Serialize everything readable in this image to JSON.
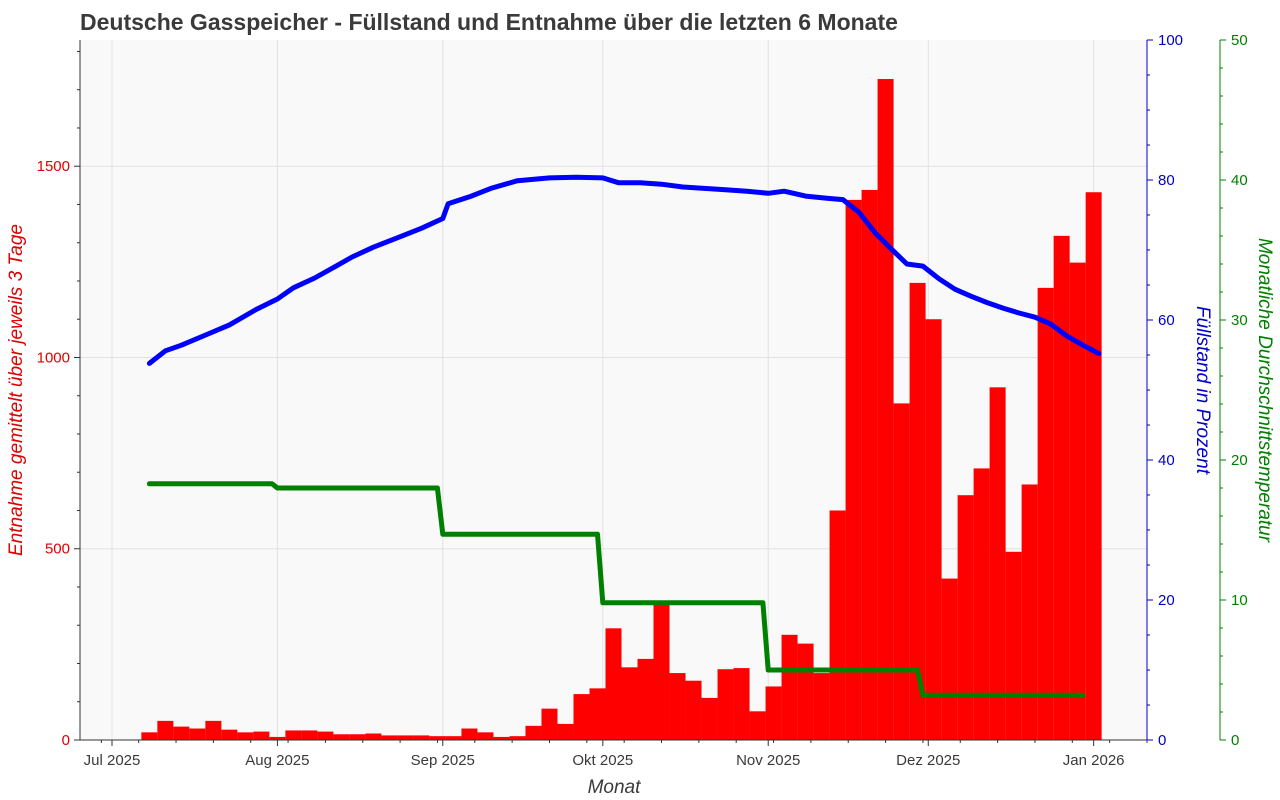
{
  "chart_data": {
    "type": "bar+line",
    "title": "Deutsche Gasspeicher - Füllstand und Entnahme über die letzten 6 Monate",
    "xlabel": "Monat",
    "x_ticks": [
      "Jul 2025",
      "Aug 2025",
      "Sep 2025",
      "Okt 2025",
      "Nov 2025",
      "Dez 2025",
      "Jan 2026"
    ],
    "x_tick_dates": [
      "2025-07-01",
      "2025-08-01",
      "2025-09-01",
      "2025-10-01",
      "2025-11-01",
      "2025-12-01",
      "2026-01-01"
    ],
    "xlim": [
      "2025-06-25",
      "2026-01-11"
    ],
    "grid": true,
    "legend": "none",
    "colors": {
      "bars": "#ff0000",
      "fill": "#0000ff",
      "temperature": "#008000",
      "plot_bg": "#f9f9f9"
    },
    "axes": {
      "left": {
        "label": "Entnahme gemittelt über jeweils 3 Tage",
        "color": "#e00000",
        "ticks": [
          0,
          500,
          1000,
          1500
        ],
        "ylim": [
          0,
          1830
        ]
      },
      "right1": {
        "label": "Füllstand in Prozent",
        "color": "#0000cc",
        "ticks": [
          0,
          20,
          40,
          60,
          80,
          100
        ],
        "ylim": [
          0,
          100
        ]
      },
      "right2": {
        "label": "Monatliche Durchschnittstemperatur",
        "color": "#008000",
        "ticks": [
          0,
          10,
          20,
          30,
          40,
          50
        ],
        "ylim": [
          0,
          50
        ]
      }
    },
    "series": [
      {
        "axis": "left",
        "kind": "bar",
        "x": [
          "2025-07-08",
          "2025-07-11",
          "2025-07-14",
          "2025-07-17",
          "2025-07-20",
          "2025-07-23",
          "2025-07-26",
          "2025-07-29",
          "2025-08-01",
          "2025-08-04",
          "2025-08-07",
          "2025-08-10",
          "2025-08-13",
          "2025-08-16",
          "2025-08-19",
          "2025-08-22",
          "2025-08-25",
          "2025-08-28",
          "2025-08-31",
          "2025-09-03",
          "2025-09-06",
          "2025-09-09",
          "2025-09-12",
          "2025-09-15",
          "2025-09-18",
          "2025-09-21",
          "2025-09-24",
          "2025-09-27",
          "2025-09-30",
          "2025-10-03",
          "2025-10-06",
          "2025-10-09",
          "2025-10-12",
          "2025-10-15",
          "2025-10-18",
          "2025-10-21",
          "2025-10-24",
          "2025-10-27",
          "2025-10-30",
          "2025-11-02",
          "2025-11-05",
          "2025-11-08",
          "2025-11-11",
          "2025-11-14",
          "2025-11-17",
          "2025-11-20",
          "2025-11-23",
          "2025-11-26",
          "2025-11-29",
          "2025-12-02",
          "2025-12-05",
          "2025-12-08",
          "2025-12-11",
          "2025-12-14",
          "2025-12-17",
          "2025-12-20",
          "2025-12-23",
          "2025-12-26",
          "2025-12-29",
          "2026-01-01"
        ],
        "values": [
          20,
          50,
          35,
          30,
          50,
          27,
          20,
          22,
          8,
          25,
          25,
          22,
          15,
          15,
          17,
          12,
          12,
          12,
          10,
          10,
          30,
          20,
          8,
          10,
          37,
          82,
          42,
          120,
          135,
          292,
          190,
          212,
          362,
          175,
          155,
          110,
          185,
          188,
          75,
          140,
          275,
          252,
          175,
          600,
          1412,
          1438,
          1728,
          880,
          1195,
          1100,
          422,
          640,
          710,
          922,
          492,
          668,
          1182,
          1318,
          1248,
          1432
        ]
      },
      {
        "axis": "right1",
        "kind": "line",
        "x": [
          "2025-07-08",
          "2025-07-11",
          "2025-07-14",
          "2025-07-19",
          "2025-07-23",
          "2025-07-28",
          "2025-08-01",
          "2025-08-04",
          "2025-08-08",
          "2025-08-12",
          "2025-08-15",
          "2025-08-19",
          "2025-08-23",
          "2025-08-28",
          "2025-09-01",
          "2025-09-02",
          "2025-09-06",
          "2025-09-10",
          "2025-09-15",
          "2025-09-21",
          "2025-09-26",
          "2025-10-01",
          "2025-10-04",
          "2025-10-08",
          "2025-10-12",
          "2025-10-16",
          "2025-10-20",
          "2025-10-24",
          "2025-10-28",
          "2025-11-01",
          "2025-11-04",
          "2025-11-08",
          "2025-11-12",
          "2025-11-15",
          "2025-11-18",
          "2025-11-21",
          "2025-11-24",
          "2025-11-27",
          "2025-11-30",
          "2025-12-03",
          "2025-12-06",
          "2025-12-09",
          "2025-12-12",
          "2025-12-15",
          "2025-12-18",
          "2025-12-21",
          "2025-12-24",
          "2025-12-27",
          "2025-12-30",
          "2026-01-02"
        ],
        "values": [
          53.8,
          55.6,
          56.4,
          58.0,
          59.3,
          61.5,
          63.0,
          64.6,
          66.0,
          67.7,
          69.0,
          70.4,
          71.6,
          73.1,
          74.5,
          76.6,
          77.6,
          78.8,
          79.9,
          80.3,
          80.4,
          80.3,
          79.6,
          79.6,
          79.4,
          79.0,
          78.8,
          78.6,
          78.4,
          78.1,
          78.4,
          77.7,
          77.4,
          77.2,
          75.4,
          72.5,
          70.2,
          68.0,
          67.7,
          65.9,
          64.4,
          63.4,
          62.5,
          61.7,
          61.0,
          60.4,
          59.4,
          57.7,
          56.4,
          55.2
        ]
      },
      {
        "axis": "right2",
        "kind": "step",
        "x": [
          "2025-07-08",
          "2025-07-31",
          "2025-08-01",
          "2025-08-31",
          "2025-09-01",
          "2025-09-30",
          "2025-10-01",
          "2025-10-31",
          "2025-11-01",
          "2025-11-29",
          "2025-11-30",
          "2025-12-30"
        ],
        "values": [
          18.3,
          18.3,
          18.0,
          18.0,
          14.7,
          14.7,
          9.8,
          9.8,
          5.0,
          5.0,
          3.2,
          3.2
        ]
      }
    ]
  }
}
